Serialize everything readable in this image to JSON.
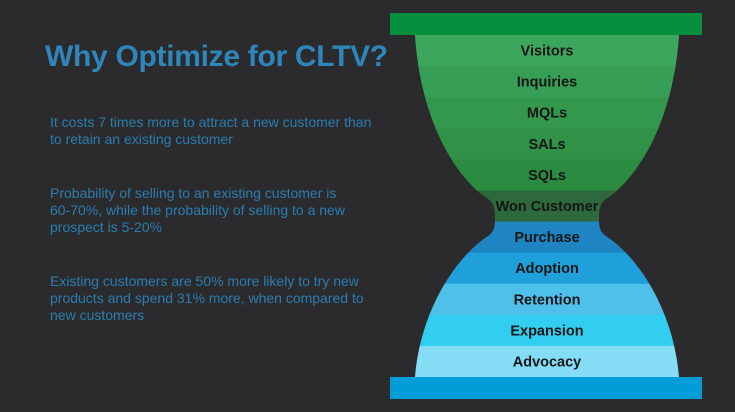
{
  "slide": {
    "background_color": "#2b2b2d",
    "title": "Why Optimize for CLTV?",
    "title_color": "#2e86bb",
    "body_text_color": "#2b7db0",
    "bullets": [
      "It costs 7 times more to attract a new customer than\nto retain an existing customer",
      "Probability of selling to an existing customer is\n60-70%, while the probability of selling to a new\nprospect is 5-20%",
      "Existing customers are 50% more likely to try new\nproducts and spend 31% more, when compared to\nnew customers"
    ]
  },
  "chart_data": {
    "type": "funnel",
    "shape": "hourglass",
    "title": "",
    "label_color": "#161616",
    "top_rim_color": "#068f3c",
    "bottom_rim_color": "#029dd8",
    "stages": [
      {
        "label": "Visitors",
        "color": "#3ca65d"
      },
      {
        "label": "Inquiries",
        "color": "#379f55"
      },
      {
        "label": "MQLs",
        "color": "#33984d"
      },
      {
        "label": "SALs",
        "color": "#2f9247"
      },
      {
        "label": "SQLs",
        "color": "#2b8b41"
      },
      {
        "label": "Won Customer",
        "color": "#2d693c"
      },
      {
        "label": "Purchase",
        "color": "#1e85c2"
      },
      {
        "label": "Adoption",
        "color": "#1fa0da"
      },
      {
        "label": "Retention",
        "color": "#4ec0e9"
      },
      {
        "label": "Expansion",
        "color": "#31ceef"
      },
      {
        "label": "Advocacy",
        "color": "#84ddf5"
      }
    ]
  }
}
